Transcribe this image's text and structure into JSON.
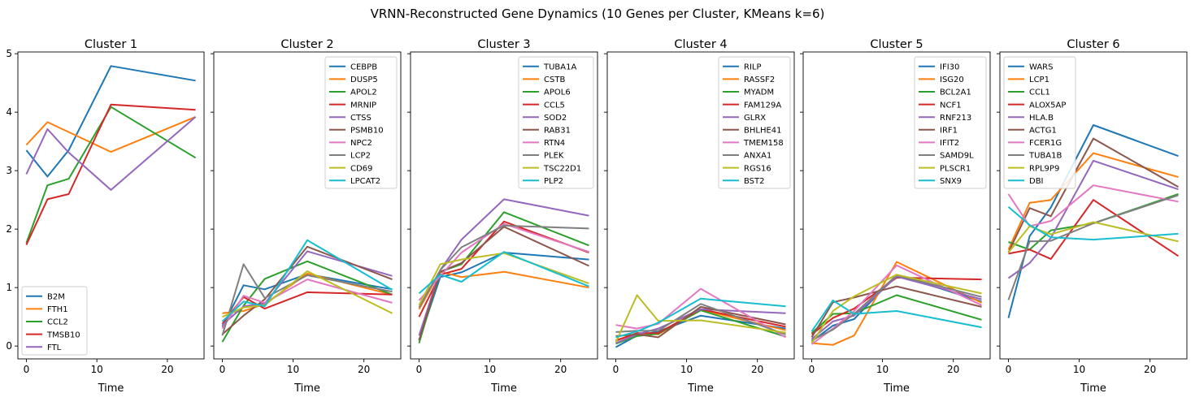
{
  "figure": {
    "title": "VRNN-Reconstructed Gene Dynamics (10 Genes per Cluster, KMeans k=6)"
  },
  "axes_common": {
    "xlabel": "Time",
    "xlim": [
      -1.2,
      25.2
    ],
    "ylim": [
      -0.22,
      5.03
    ],
    "xticks": [
      0,
      10,
      20
    ],
    "yticks": [
      0,
      1,
      2,
      3,
      4,
      5
    ],
    "x_points": [
      0,
      3,
      6,
      12,
      24
    ]
  },
  "palette": [
    "#1f77b4",
    "#ff7f0e",
    "#2ca02c",
    "#d62728",
    "#9467bd",
    "#8c564b",
    "#e377c2",
    "#7f7f7f",
    "#bcbd22",
    "#17becf"
  ],
  "chart_data": [
    {
      "type": "line",
      "title": "Cluster 1",
      "xlabel": "Time",
      "legend": "lower-left",
      "x": [
        0,
        3,
        6,
        12,
        24
      ],
      "series": [
        {
          "name": "B2M",
          "values": [
            3.35,
            2.9,
            3.35,
            4.79,
            4.54
          ]
        },
        {
          "name": "FTH1",
          "values": [
            3.44,
            3.83,
            3.66,
            3.32,
            3.92
          ]
        },
        {
          "name": "CCL2",
          "values": [
            1.76,
            2.75,
            2.86,
            4.09,
            3.22
          ]
        },
        {
          "name": "TMSB10",
          "values": [
            1.73,
            2.51,
            2.6,
            4.13,
            4.04
          ]
        },
        {
          "name": "FTL",
          "values": [
            2.94,
            3.71,
            3.31,
            2.67,
            3.92
          ]
        }
      ]
    },
    {
      "type": "line",
      "title": "Cluster 2",
      "xlabel": "Time",
      "legend": "upper-right",
      "x": [
        0,
        3,
        6,
        12,
        24
      ],
      "series": [
        {
          "name": "CEBPB",
          "values": [
            0.33,
            1.04,
            0.97,
            1.23,
            0.97
          ]
        },
        {
          "name": "DUSP5",
          "values": [
            0.56,
            0.6,
            0.72,
            1.24,
            0.88
          ]
        },
        {
          "name": "APOL2",
          "values": [
            0.07,
            0.69,
            1.15,
            1.45,
            0.88
          ]
        },
        {
          "name": "MRNIP",
          "values": [
            0.38,
            0.84,
            0.64,
            0.92,
            0.88
          ]
        },
        {
          "name": "CTSS",
          "values": [
            0.36,
            0.68,
            0.73,
            1.62,
            1.2
          ]
        },
        {
          "name": "PSMB10",
          "values": [
            0.2,
            0.52,
            0.8,
            1.7,
            1.14
          ]
        },
        {
          "name": "NPC2",
          "values": [
            0.3,
            0.86,
            0.74,
            1.14,
            0.74
          ]
        },
        {
          "name": "LCP2",
          "values": [
            0.18,
            1.4,
            0.82,
            1.21,
            0.93
          ]
        },
        {
          "name": "CD69",
          "values": [
            0.5,
            0.66,
            0.7,
            1.28,
            0.56
          ]
        },
        {
          "name": "LPCAT2",
          "values": [
            0.42,
            0.76,
            0.68,
            1.81,
            0.96
          ]
        }
      ]
    },
    {
      "type": "line",
      "title": "Cluster 3",
      "xlabel": "Time",
      "legend": "upper-right",
      "x": [
        0,
        3,
        6,
        12,
        24
      ],
      "series": [
        {
          "name": "TUBA1A",
          "values": [
            0.1,
            1.18,
            1.26,
            1.6,
            1.48
          ]
        },
        {
          "name": "CSTB",
          "values": [
            0.63,
            1.27,
            1.18,
            1.27,
            1.0
          ]
        },
        {
          "name": "APOL6",
          "values": [
            0.05,
            1.27,
            1.4,
            2.29,
            1.72
          ]
        },
        {
          "name": "CCL5",
          "values": [
            0.5,
            1.22,
            1.32,
            2.13,
            1.6
          ]
        },
        {
          "name": "SOD2",
          "values": [
            0.18,
            1.3,
            1.82,
            2.51,
            2.23
          ]
        },
        {
          "name": "RAB31",
          "values": [
            0.1,
            1.27,
            1.42,
            2.04,
            1.37
          ]
        },
        {
          "name": "RTN4",
          "values": [
            0.78,
            1.2,
            1.6,
            2.09,
            1.61
          ]
        },
        {
          "name": "PLEK",
          "values": [
            0.66,
            1.3,
            1.69,
            2.06,
            2.01
          ]
        },
        {
          "name": "TSC22D1",
          "values": [
            0.7,
            1.4,
            1.48,
            1.59,
            1.07
          ]
        },
        {
          "name": "PLP2",
          "values": [
            0.9,
            1.22,
            1.1,
            1.61,
            1.02
          ]
        }
      ]
    },
    {
      "type": "line",
      "title": "Cluster 4",
      "xlabel": "Time",
      "legend": "upper-right",
      "x": [
        0,
        3,
        6,
        12,
        24
      ],
      "series": [
        {
          "name": "RILP",
          "values": [
            -0.02,
            0.18,
            0.25,
            0.52,
            0.3
          ]
        },
        {
          "name": "RASSF2",
          "values": [
            0.1,
            0.22,
            0.2,
            0.62,
            0.27
          ]
        },
        {
          "name": "MYADM",
          "values": [
            0.04,
            0.17,
            0.21,
            0.61,
            0.16
          ]
        },
        {
          "name": "FAM129A",
          "values": [
            0.09,
            0.22,
            0.22,
            0.63,
            0.33
          ]
        },
        {
          "name": "GLRX",
          "values": [
            0.05,
            0.2,
            0.3,
            0.63,
            0.56
          ]
        },
        {
          "name": "BHLHE41",
          "values": [
            0.17,
            0.2,
            0.15,
            0.67,
            0.37
          ]
        },
        {
          "name": "TMEM158",
          "values": [
            0.36,
            0.3,
            0.38,
            0.98,
            0.15
          ]
        },
        {
          "name": "ANXA1",
          "values": [
            0.24,
            0.26,
            0.26,
            0.72,
            0.2
          ]
        },
        {
          "name": "RGS16",
          "values": [
            0.06,
            0.87,
            0.43,
            0.44,
            0.23
          ]
        },
        {
          "name": "BST2",
          "values": [
            0.15,
            0.25,
            0.4,
            0.81,
            0.68
          ]
        }
      ]
    },
    {
      "type": "line",
      "title": "Cluster 5",
      "xlabel": "Time",
      "legend": "upper-right",
      "x": [
        0,
        3,
        6,
        12,
        24
      ],
      "series": [
        {
          "name": "IFI30",
          "values": [
            0.08,
            0.35,
            0.46,
            1.22,
            0.76
          ]
        },
        {
          "name": "ISG20",
          "values": [
            0.05,
            0.02,
            0.18,
            1.44,
            0.74
          ]
        },
        {
          "name": "BCL2A1",
          "values": [
            0.22,
            0.55,
            0.56,
            0.87,
            0.45
          ]
        },
        {
          "name": "NCF1",
          "values": [
            0.2,
            0.48,
            0.64,
            1.17,
            1.14
          ]
        },
        {
          "name": "RNF213",
          "values": [
            0.12,
            0.42,
            0.52,
            1.19,
            0.8
          ]
        },
        {
          "name": "IRF1",
          "values": [
            0.15,
            0.75,
            0.83,
            1.02,
            0.67
          ]
        },
        {
          "name": "IFIT2",
          "values": [
            0.03,
            0.3,
            0.6,
            1.38,
            0.7
          ]
        },
        {
          "name": "SAMD9L",
          "values": [
            0.1,
            0.28,
            0.55,
            1.21,
            0.84
          ]
        },
        {
          "name": "PLSCR1",
          "values": [
            0.05,
            0.6,
            0.85,
            1.22,
            0.9
          ]
        },
        {
          "name": "SNX9",
          "values": [
            0.25,
            0.78,
            0.55,
            0.6,
            0.32
          ]
        }
      ]
    },
    {
      "type": "line",
      "title": "Cluster 6",
      "xlabel": "Time",
      "legend": "upper-left",
      "x": [
        0,
        3,
        6,
        12,
        24
      ],
      "series": [
        {
          "name": "WARS",
          "values": [
            0.48,
            1.88,
            2.37,
            3.78,
            3.25
          ]
        },
        {
          "name": "LCP1",
          "values": [
            1.65,
            2.45,
            2.5,
            3.3,
            2.89
          ]
        },
        {
          "name": "CCL1",
          "values": [
            1.78,
            1.65,
            1.98,
            2.1,
            2.6
          ]
        },
        {
          "name": "ALOX5AP",
          "values": [
            1.58,
            1.65,
            1.49,
            2.5,
            1.54
          ]
        },
        {
          "name": "HLA.B",
          "values": [
            1.16,
            1.42,
            1.85,
            3.17,
            2.68
          ]
        },
        {
          "name": "ACTG1",
          "values": [
            1.6,
            2.36,
            2.22,
            3.55,
            2.72
          ]
        },
        {
          "name": "FCER1G",
          "values": [
            2.6,
            2.05,
            2.14,
            2.75,
            2.47
          ]
        },
        {
          "name": "TUBA1B",
          "values": [
            0.79,
            1.79,
            1.8,
            2.1,
            2.58
          ]
        },
        {
          "name": "RPL9P9",
          "values": [
            1.6,
            2.05,
            1.91,
            2.12,
            1.79
          ]
        },
        {
          "name": "DBI",
          "values": [
            2.38,
            2.07,
            1.86,
            1.82,
            1.92
          ]
        }
      ]
    }
  ]
}
